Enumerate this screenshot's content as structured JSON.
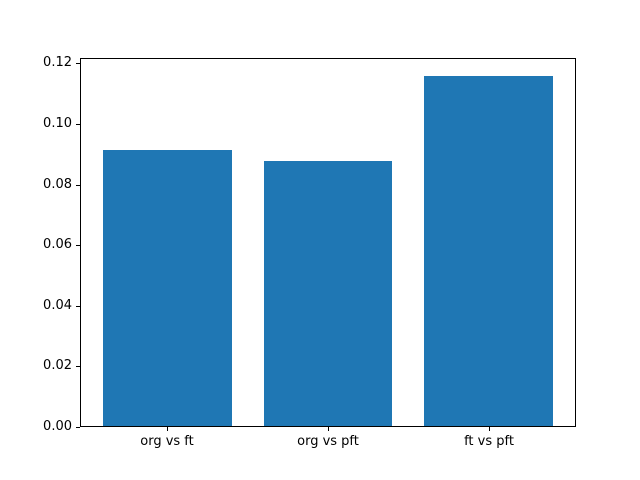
{
  "figure": {
    "background_color": "#ffffff",
    "frame_color": "#000000"
  },
  "chart_data": {
    "type": "bar",
    "title": "",
    "xlabel": "",
    "ylabel": "",
    "categories": [
      "org vs ft",
      "org vs pft",
      "ft vs pft"
    ],
    "values": [
      0.0915,
      0.0878,
      0.116
    ],
    "bar_color": "#1f77b4",
    "bar_width_fraction": 0.8,
    "xlim": [
      -0.54,
      2.54
    ],
    "ylim": [
      0,
      0.1218
    ],
    "yticks": [
      0.0,
      0.02,
      0.04,
      0.06,
      0.08,
      0.1,
      0.12
    ],
    "ytick_format_decimals": 2,
    "grid": false,
    "legend": "none",
    "frame": "full-box"
  }
}
